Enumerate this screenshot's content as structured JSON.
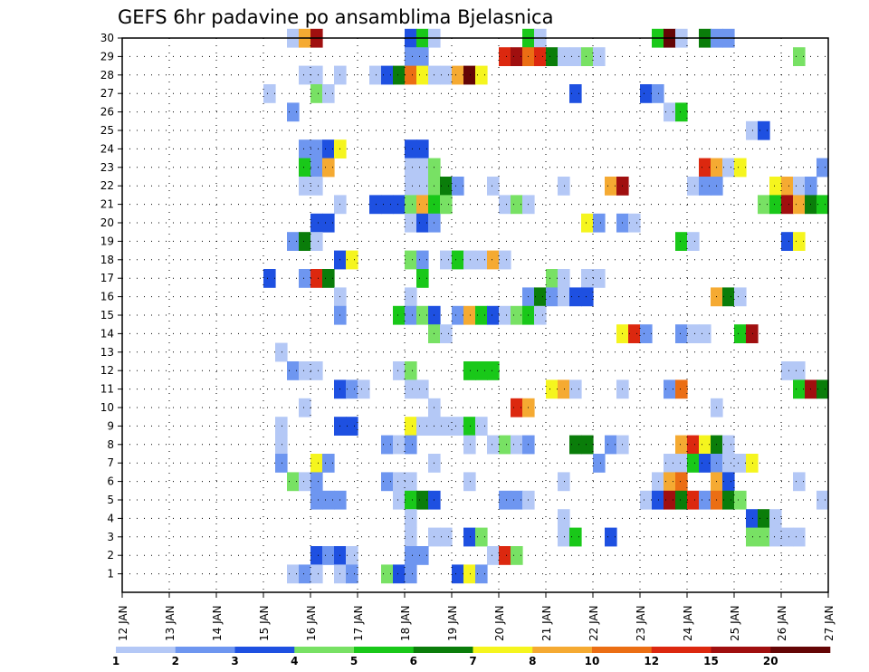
{
  "chart_data": {
    "type": "heatmap",
    "title": "GEFS 6hr padavine po ansamblima Bjelasnica",
    "xlabel": "",
    "ylabel": "",
    "x_tick_labels": [
      "12 JAN",
      "13 JAN",
      "14 JAN",
      "15 JAN",
      "16 JAN",
      "17 JAN",
      "18 JAN",
      "19 JAN",
      "20 JAN",
      "21 JAN",
      "22 JAN",
      "23 JAN",
      "24 JAN",
      "25 JAN",
      "26 JAN",
      "27 JAN"
    ],
    "y_tick_labels": [
      "1",
      "2",
      "3",
      "4",
      "5",
      "6",
      "7",
      "8",
      "9",
      "10",
      "11",
      "12",
      "13",
      "14",
      "15",
      "16",
      "17",
      "18",
      "19",
      "20",
      "21",
      "22",
      "23",
      "24",
      "25",
      "26",
      "27",
      "28",
      "29",
      "30"
    ],
    "x_range_days": [
      12,
      27
    ],
    "y_range": [
      0,
      30
    ],
    "grid": "dotted",
    "legend_placement": "bottom",
    "legend_values": [
      "1",
      "2",
      "3",
      "4",
      "5",
      "6",
      "7",
      "8",
      "10",
      "12",
      "15",
      "20"
    ],
    "color_scale": [
      "#b4c8f6",
      "#6e96f0",
      "#1e50e1",
      "#78e164",
      "#19c819",
      "#0a7d0a",
      "#f5f51e",
      "#f5aa32",
      "#eb6e14",
      "#dc280f",
      "#a00f0f",
      "#640505"
    ],
    "time_step_days": 0.25,
    "cells": [
      [
        30,
        15.5,
        1
      ],
      [
        30,
        15.75,
        8
      ],
      [
        30,
        16,
        11
      ],
      [
        30,
        18,
        3
      ],
      [
        30,
        18.25,
        5
      ],
      [
        30,
        18.5,
        1
      ],
      [
        30,
        20.5,
        5
      ],
      [
        30,
        20.75,
        1
      ],
      [
        30,
        23.25,
        5
      ],
      [
        30,
        23.5,
        12
      ],
      [
        30,
        23.75,
        1
      ],
      [
        30,
        24.25,
        6
      ],
      [
        30,
        24.5,
        2
      ],
      [
        30,
        24.75,
        2
      ],
      [
        29,
        18,
        2
      ],
      [
        29,
        18.25,
        2
      ],
      [
        29,
        20,
        10
      ],
      [
        29,
        20.25,
        11
      ],
      [
        29,
        20.5,
        9
      ],
      [
        29,
        20.75,
        10
      ],
      [
        29,
        21,
        6
      ],
      [
        29,
        21.25,
        1
      ],
      [
        29,
        21.5,
        1
      ],
      [
        29,
        21.75,
        4
      ],
      [
        29,
        22,
        1
      ],
      [
        29,
        26.25,
        4
      ],
      [
        28,
        15.75,
        1
      ],
      [
        28,
        16,
        1
      ],
      [
        28,
        16.5,
        1
      ],
      [
        28,
        17.25,
        1
      ],
      [
        28,
        17.5,
        3
      ],
      [
        28,
        17.75,
        6
      ],
      [
        28,
        18,
        9
      ],
      [
        28,
        18.25,
        7
      ],
      [
        28,
        18.5,
        1
      ],
      [
        28,
        18.75,
        1
      ],
      [
        28,
        19,
        8
      ],
      [
        28,
        19.25,
        12
      ],
      [
        28,
        19.5,
        7
      ],
      [
        27,
        15,
        1
      ],
      [
        27,
        16,
        4
      ],
      [
        27,
        16.25,
        1
      ],
      [
        27,
        21.5,
        3
      ],
      [
        27,
        23,
        3
      ],
      [
        27,
        23.25,
        2
      ],
      [
        26,
        15.5,
        2
      ],
      [
        26,
        23.5,
        1
      ],
      [
        26,
        23.75,
        5
      ],
      [
        25,
        25.25,
        1
      ],
      [
        25,
        25.5,
        3
      ],
      [
        24,
        15.75,
        2
      ],
      [
        24,
        16,
        2
      ],
      [
        24,
        16.25,
        3
      ],
      [
        24,
        16.5,
        7
      ],
      [
        24,
        18,
        3
      ],
      [
        24,
        18.25,
        3
      ],
      [
        23,
        15.75,
        5
      ],
      [
        23,
        16,
        2
      ],
      [
        23,
        16.25,
        8
      ],
      [
        23,
        18,
        1
      ],
      [
        23,
        18.25,
        1
      ],
      [
        23,
        18.5,
        4
      ],
      [
        23,
        24.25,
        10
      ],
      [
        23,
        24.5,
        8
      ],
      [
        23,
        24.75,
        1
      ],
      [
        23,
        25,
        7
      ],
      [
        23,
        26.75,
        2
      ],
      [
        22,
        15.75,
        1
      ],
      [
        22,
        16,
        1
      ],
      [
        22,
        18,
        1
      ],
      [
        22,
        18.25,
        1
      ],
      [
        22,
        18.5,
        4
      ],
      [
        22,
        18.75,
        6
      ],
      [
        22,
        19,
        2
      ],
      [
        22,
        19.75,
        1
      ],
      [
        22,
        21.25,
        1
      ],
      [
        22,
        22.25,
        8
      ],
      [
        22,
        22.5,
        11
      ],
      [
        22,
        24,
        1
      ],
      [
        22,
        24.25,
        2
      ],
      [
        22,
        24.5,
        2
      ],
      [
        22,
        25.75,
        7
      ],
      [
        22,
        26,
        8
      ],
      [
        22,
        26.25,
        1
      ],
      [
        22,
        26.5,
        2
      ],
      [
        21,
        16.5,
        1
      ],
      [
        21,
        17.25,
        3
      ],
      [
        21,
        17.5,
        3
      ],
      [
        21,
        17.75,
        3
      ],
      [
        21,
        18,
        4
      ],
      [
        21,
        18.25,
        8
      ],
      [
        21,
        18.5,
        5
      ],
      [
        21,
        18.75,
        4
      ],
      [
        21,
        20,
        1
      ],
      [
        21,
        20.25,
        4
      ],
      [
        21,
        20.5,
        1
      ],
      [
        21,
        25.5,
        4
      ],
      [
        21,
        25.75,
        5
      ],
      [
        21,
        26,
        11
      ],
      [
        21,
        26.25,
        8
      ],
      [
        21,
        26.5,
        6
      ],
      [
        21,
        26.75,
        5
      ],
      [
        20,
        16,
        3
      ],
      [
        20,
        16.25,
        3
      ],
      [
        20,
        18,
        1
      ],
      [
        20,
        18.25,
        3
      ],
      [
        20,
        18.5,
        2
      ],
      [
        20,
        21.75,
        7
      ],
      [
        20,
        22,
        2
      ],
      [
        20,
        22.5,
        2
      ],
      [
        20,
        22.75,
        1
      ],
      [
        19,
        15.5,
        2
      ],
      [
        19,
        15.75,
        6
      ],
      [
        19,
        16,
        1
      ],
      [
        19,
        23.75,
        5
      ],
      [
        19,
        24,
        1
      ],
      [
        19,
        26,
        3
      ],
      [
        19,
        26.25,
        7
      ],
      [
        18,
        16.5,
        3
      ],
      [
        18,
        16.75,
        7
      ],
      [
        18,
        18,
        4
      ],
      [
        18,
        18.25,
        2
      ],
      [
        18,
        18.75,
        1
      ],
      [
        18,
        19,
        5
      ],
      [
        18,
        19.25,
        1
      ],
      [
        18,
        19.5,
        1
      ],
      [
        18,
        19.75,
        8
      ],
      [
        18,
        20,
        1
      ],
      [
        17,
        15,
        3
      ],
      [
        17,
        15.75,
        2
      ],
      [
        17,
        16,
        10
      ],
      [
        17,
        16.25,
        6
      ],
      [
        17,
        18.25,
        5
      ],
      [
        17,
        21,
        4
      ],
      [
        17,
        21.25,
        1
      ],
      [
        17,
        21.75,
        1
      ],
      [
        17,
        22,
        1
      ],
      [
        16,
        16.5,
        1
      ],
      [
        16,
        18,
        1
      ],
      [
        16,
        20.5,
        2
      ],
      [
        16,
        20.75,
        6
      ],
      [
        16,
        21,
        2
      ],
      [
        16,
        21.25,
        1
      ],
      [
        16,
        21.5,
        3
      ],
      [
        16,
        21.75,
        3
      ],
      [
        16,
        24.5,
        8
      ],
      [
        16,
        24.75,
        6
      ],
      [
        16,
        25,
        1
      ],
      [
        15,
        16.5,
        2
      ],
      [
        15,
        17.75,
        5
      ],
      [
        15,
        18,
        2
      ],
      [
        15,
        18.25,
        4
      ],
      [
        15,
        18.5,
        3
      ],
      [
        15,
        19,
        2
      ],
      [
        15,
        19.25,
        8
      ],
      [
        15,
        19.5,
        5
      ],
      [
        15,
        19.75,
        3
      ],
      [
        15,
        20,
        1
      ],
      [
        15,
        20.25,
        4
      ],
      [
        15,
        20.5,
        5
      ],
      [
        15,
        20.75,
        1
      ],
      [
        14,
        18.5,
        4
      ],
      [
        14,
        18.75,
        1
      ],
      [
        14,
        22.5,
        7
      ],
      [
        14,
        22.75,
        10
      ],
      [
        14,
        23,
        2
      ],
      [
        14,
        23.75,
        2
      ],
      [
        14,
        24,
        1
      ],
      [
        14,
        24.25,
        1
      ],
      [
        14,
        25,
        5
      ],
      [
        14,
        25.25,
        11
      ],
      [
        13,
        15.25,
        1
      ],
      [
        12,
        15.5,
        2
      ],
      [
        12,
        15.75,
        1
      ],
      [
        12,
        16,
        1
      ],
      [
        12,
        17.75,
        1
      ],
      [
        12,
        18,
        4
      ],
      [
        12,
        19.25,
        5
      ],
      [
        12,
        19.5,
        5
      ],
      [
        12,
        19.75,
        5
      ],
      [
        12,
        26,
        1
      ],
      [
        12,
        26.25,
        1
      ],
      [
        11,
        16.5,
        3
      ],
      [
        11,
        16.75,
        2
      ],
      [
        11,
        17,
        1
      ],
      [
        11,
        18,
        1
      ],
      [
        11,
        18.25,
        1
      ],
      [
        11,
        21,
        7
      ],
      [
        11,
        21.25,
        8
      ],
      [
        11,
        21.5,
        1
      ],
      [
        11,
        22.5,
        1
      ],
      [
        11,
        23.5,
        2
      ],
      [
        11,
        23.75,
        9
      ],
      [
        11,
        26.25,
        5
      ],
      [
        11,
        26.5,
        11
      ],
      [
        11,
        26.75,
        6
      ],
      [
        10,
        15.75,
        1
      ],
      [
        10,
        18.5,
        1
      ],
      [
        10,
        20.25,
        10
      ],
      [
        10,
        20.5,
        8
      ],
      [
        10,
        24.5,
        1
      ],
      [
        9,
        15.25,
        1
      ],
      [
        9,
        16.5,
        3
      ],
      [
        9,
        16.75,
        3
      ],
      [
        9,
        18,
        7
      ],
      [
        9,
        18.25,
        1
      ],
      [
        9,
        18.5,
        1
      ],
      [
        9,
        18.75,
        1
      ],
      [
        9,
        19,
        1
      ],
      [
        9,
        19.25,
        5
      ],
      [
        9,
        19.5,
        1
      ],
      [
        8,
        15.25,
        1
      ],
      [
        8,
        17.5,
        2
      ],
      [
        8,
        17.75,
        1
      ],
      [
        8,
        18,
        2
      ],
      [
        8,
        19.25,
        1
      ],
      [
        8,
        19.75,
        1
      ],
      [
        8,
        20,
        4
      ],
      [
        8,
        20.25,
        1
      ],
      [
        8,
        20.5,
        2
      ],
      [
        8,
        21.5,
        6
      ],
      [
        8,
        21.75,
        6
      ],
      [
        8,
        22.25,
        2
      ],
      [
        8,
        22.5,
        1
      ],
      [
        8,
        23.75,
        8
      ],
      [
        8,
        24,
        10
      ],
      [
        8,
        24.25,
        7
      ],
      [
        8,
        24.5,
        6
      ],
      [
        8,
        24.75,
        1
      ],
      [
        7,
        15.25,
        2
      ],
      [
        7,
        16,
        7
      ],
      [
        7,
        16.25,
        2
      ],
      [
        7,
        18.5,
        1
      ],
      [
        7,
        22,
        2
      ],
      [
        7,
        23.5,
        1
      ],
      [
        7,
        23.75,
        1
      ],
      [
        7,
        24,
        5
      ],
      [
        7,
        24.25,
        3
      ],
      [
        7,
        24.5,
        2
      ],
      [
        7,
        24.75,
        1
      ],
      [
        7,
        25,
        1
      ],
      [
        7,
        25.25,
        7
      ],
      [
        6,
        15.5,
        4
      ],
      [
        6,
        15.75,
        1
      ],
      [
        6,
        16,
        2
      ],
      [
        6,
        17.5,
        2
      ],
      [
        6,
        17.75,
        1
      ],
      [
        6,
        18,
        1
      ],
      [
        6,
        19.25,
        1
      ],
      [
        6,
        21.25,
        1
      ],
      [
        6,
        23.25,
        1
      ],
      [
        6,
        23.5,
        8
      ],
      [
        6,
        23.75,
        9
      ],
      [
        6,
        24.5,
        8
      ],
      [
        6,
        24.75,
        3
      ],
      [
        6,
        26.25,
        1
      ],
      [
        5,
        16,
        2
      ],
      [
        5,
        16.25,
        2
      ],
      [
        5,
        16.5,
        2
      ],
      [
        5,
        17.75,
        1
      ],
      [
        5,
        18,
        5
      ],
      [
        5,
        18.25,
        6
      ],
      [
        5,
        18.5,
        3
      ],
      [
        5,
        20,
        2
      ],
      [
        5,
        20.25,
        2
      ],
      [
        5,
        20.5,
        1
      ],
      [
        5,
        23,
        1
      ],
      [
        5,
        23.25,
        3
      ],
      [
        5,
        23.5,
        11
      ],
      [
        5,
        23.75,
        6
      ],
      [
        5,
        24,
        10
      ],
      [
        5,
        24.25,
        2
      ],
      [
        5,
        24.5,
        9
      ],
      [
        5,
        24.75,
        6
      ],
      [
        5,
        25,
        4
      ],
      [
        5,
        26.75,
        1
      ],
      [
        4,
        18,
        1
      ],
      [
        4,
        21.25,
        1
      ],
      [
        4,
        25.25,
        3
      ],
      [
        4,
        25.5,
        6
      ],
      [
        4,
        25.75,
        1
      ],
      [
        3,
        18,
        1
      ],
      [
        3,
        18.5,
        1
      ],
      [
        3,
        18.75,
        1
      ],
      [
        3,
        19.25,
        3
      ],
      [
        3,
        19.5,
        4
      ],
      [
        3,
        21.25,
        1
      ],
      [
        3,
        21.5,
        5
      ],
      [
        3,
        22.25,
        3
      ],
      [
        3,
        25.25,
        4
      ],
      [
        3,
        25.5,
        4
      ],
      [
        3,
        25.75,
        1
      ],
      [
        3,
        26,
        1
      ],
      [
        3,
        26.25,
        1
      ],
      [
        2,
        16,
        3
      ],
      [
        2,
        16.25,
        2
      ],
      [
        2,
        16.5,
        3
      ],
      [
        2,
        16.75,
        1
      ],
      [
        2,
        18,
        2
      ],
      [
        2,
        18.25,
        2
      ],
      [
        2,
        19.75,
        1
      ],
      [
        2,
        20,
        10
      ],
      [
        2,
        20.25,
        4
      ],
      [
        1,
        15.5,
        1
      ],
      [
        1,
        15.75,
        2
      ],
      [
        1,
        16,
        1
      ],
      [
        1,
        16.5,
        1
      ],
      [
        1,
        16.75,
        2
      ],
      [
        1,
        17.5,
        4
      ],
      [
        1,
        17.75,
        3
      ],
      [
        1,
        18,
        2
      ],
      [
        1,
        19,
        3
      ],
      [
        1,
        19.25,
        7
      ],
      [
        1,
        19.5,
        2
      ]
    ]
  }
}
